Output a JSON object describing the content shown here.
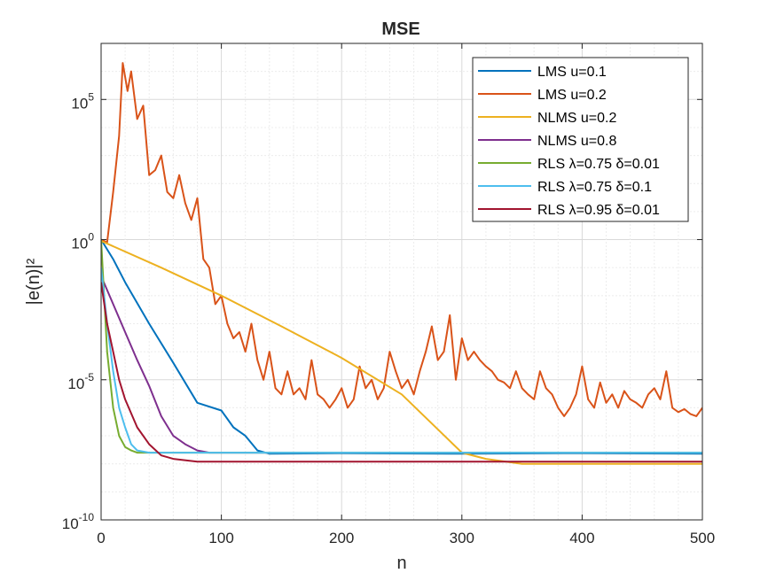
{
  "chart_data": {
    "type": "line",
    "title": "MSE",
    "xlabel": "n",
    "ylabel": "|e(n)|²",
    "xlim": [
      0,
      500
    ],
    "ylim": [
      1e-10,
      10000000.0
    ],
    "yscale": "log",
    "grid": true,
    "minor_grid": true,
    "legend_position": "top-right",
    "xticks": [
      {
        "value": 0,
        "label": "0"
      },
      {
        "value": 100,
        "label": "100"
      },
      {
        "value": 200,
        "label": "200"
      },
      {
        "value": 300,
        "label": "300"
      },
      {
        "value": 400,
        "label": "400"
      },
      {
        "value": 500,
        "label": "500"
      }
    ],
    "yticks": [
      {
        "value": 1e-10,
        "base": "10",
        "exp": "-10"
      },
      {
        "value": 1e-05,
        "base": "10",
        "exp": "-5"
      },
      {
        "value": 1,
        "base": "10",
        "exp": "0"
      },
      {
        "value": 100000.0,
        "base": "10",
        "exp": "5"
      }
    ],
    "series": [
      {
        "name": "LMS u=0.1",
        "color": "#0072BD",
        "x": [
          0,
          10,
          20,
          40,
          60,
          80,
          100,
          110,
          120,
          130,
          140,
          200,
          300,
          400,
          500
        ],
        "y": [
          1,
          0.2,
          0.03,
          0.001,
          4e-05,
          1.5e-06,
          8e-07,
          2e-07,
          1e-07,
          3e-08,
          2.3e-08,
          2.4e-08,
          2.3e-08,
          2.4e-08,
          2.3e-08
        ]
      },
      {
        "name": "LMS u=0.2",
        "color": "#D95319",
        "x": [
          0,
          5,
          10,
          15,
          18,
          22,
          25,
          30,
          35,
          40,
          45,
          50,
          55,
          60,
          65,
          70,
          75,
          80,
          85,
          90,
          95,
          100,
          105,
          110,
          115,
          120,
          125,
          130,
          135,
          140,
          145,
          150,
          155,
          160,
          165,
          170,
          175,
          180,
          185,
          190,
          195,
          200,
          205,
          210,
          215,
          220,
          225,
          230,
          235,
          240,
          245,
          250,
          255,
          260,
          265,
          270,
          275,
          280,
          285,
          290,
          295,
          300,
          305,
          310,
          315,
          320,
          325,
          330,
          335,
          340,
          345,
          350,
          355,
          360,
          365,
          370,
          375,
          380,
          385,
          390,
          395,
          400,
          405,
          410,
          415,
          420,
          425,
          430,
          435,
          440,
          445,
          450,
          455,
          460,
          465,
          470,
          475,
          480,
          485,
          490,
          495,
          500
        ],
        "y": [
          1,
          0.8,
          50,
          5000,
          2000000.0,
          200000.0,
          1000000.0,
          20000.0,
          60000.0,
          200,
          300,
          1000,
          50,
          30,
          200,
          20,
          5,
          30,
          0.2,
          0.1,
          0.005,
          0.01,
          0.001,
          0.0003,
          0.0005,
          0.0001,
          0.001,
          5e-05,
          1e-05,
          0.0001,
          5e-06,
          3e-06,
          2e-05,
          3e-06,
          5e-06,
          2e-06,
          5e-05,
          3e-06,
          2e-06,
          1e-06,
          2e-06,
          5e-06,
          1e-06,
          2e-06,
          3e-05,
          5e-06,
          1e-05,
          2e-06,
          5e-06,
          0.0001,
          2e-05,
          5e-06,
          1e-05,
          3e-06,
          2e-05,
          0.0001,
          0.0008,
          5e-05,
          0.0001,
          0.002,
          1e-05,
          0.0003,
          5e-05,
          0.0001,
          5e-05,
          3e-05,
          2e-05,
          1e-05,
          8e-06,
          5e-06,
          2e-05,
          5e-06,
          3e-06,
          2e-06,
          2e-05,
          5e-06,
          3e-06,
          1e-06,
          5e-07,
          1e-06,
          3e-06,
          3e-05,
          2e-06,
          1e-06,
          8e-06,
          1.5e-06,
          3e-06,
          1e-06,
          4e-06,
          2e-06,
          1.5e-06,
          1e-06,
          3e-06,
          5e-06,
          2e-06,
          2e-05,
          1e-06,
          7e-07,
          9e-07,
          6e-07,
          5e-07,
          1e-06
        ]
      },
      {
        "name": "NLMS u=0.2",
        "color": "#EDB120",
        "x": [
          0,
          50,
          100,
          150,
          200,
          250,
          300,
          320,
          350,
          400,
          500
        ],
        "y": [
          0.9,
          0.1,
          0.01,
          0.0008,
          6e-05,
          3e-06,
          2.5e-08,
          1.5e-08,
          1e-08,
          1e-08,
          1e-08
        ]
      },
      {
        "name": "NLMS u=0.8",
        "color": "#7E2F8E",
        "x": [
          0,
          10,
          20,
          30,
          40,
          50,
          60,
          70,
          80,
          90,
          100,
          200,
          300,
          400,
          500
        ],
        "y": [
          0.05,
          0.005,
          0.0005,
          5e-05,
          6e-06,
          5e-07,
          1e-07,
          5e-08,
          3e-08,
          2.5e-08,
          2.5e-08,
          2.5e-08,
          2.5e-08,
          2.5e-08,
          2.5e-08
        ]
      },
      {
        "name": "RLS λ=0.75 δ=0.01",
        "color": "#77AC30",
        "x": [
          0,
          5,
          10,
          15,
          20,
          25,
          30,
          40,
          100,
          200,
          300,
          400,
          500
        ],
        "y": [
          1,
          0.0001,
          1e-06,
          1e-07,
          4e-08,
          3e-08,
          2.5e-08,
          2.5e-08,
          2.5e-08,
          2.5e-08,
          2.5e-08,
          2.5e-08,
          2.5e-08
        ]
      },
      {
        "name": "RLS λ=0.75 δ=0.1",
        "color": "#4DBEEE",
        "x": [
          0,
          5,
          10,
          15,
          20,
          25,
          30,
          40,
          100,
          200,
          300,
          400,
          500
        ],
        "y": [
          0.1,
          0.001,
          2e-05,
          1e-06,
          2e-07,
          5e-08,
          3e-08,
          2.5e-08,
          2.5e-08,
          2.5e-08,
          2.5e-08,
          2.5e-08,
          2.5e-08
        ]
      },
      {
        "name": "RLS λ=0.95 δ=0.01",
        "color": "#A2142F",
        "x": [
          0,
          5,
          10,
          15,
          20,
          30,
          40,
          50,
          60,
          80,
          100,
          200,
          300,
          400,
          500
        ],
        "y": [
          0.03,
          0.001,
          0.0001,
          1e-05,
          2e-06,
          2e-07,
          5e-08,
          2e-08,
          1.5e-08,
          1.2e-08,
          1.2e-08,
          1.2e-08,
          1.2e-08,
          1.2e-08,
          1.2e-08
        ]
      }
    ]
  }
}
